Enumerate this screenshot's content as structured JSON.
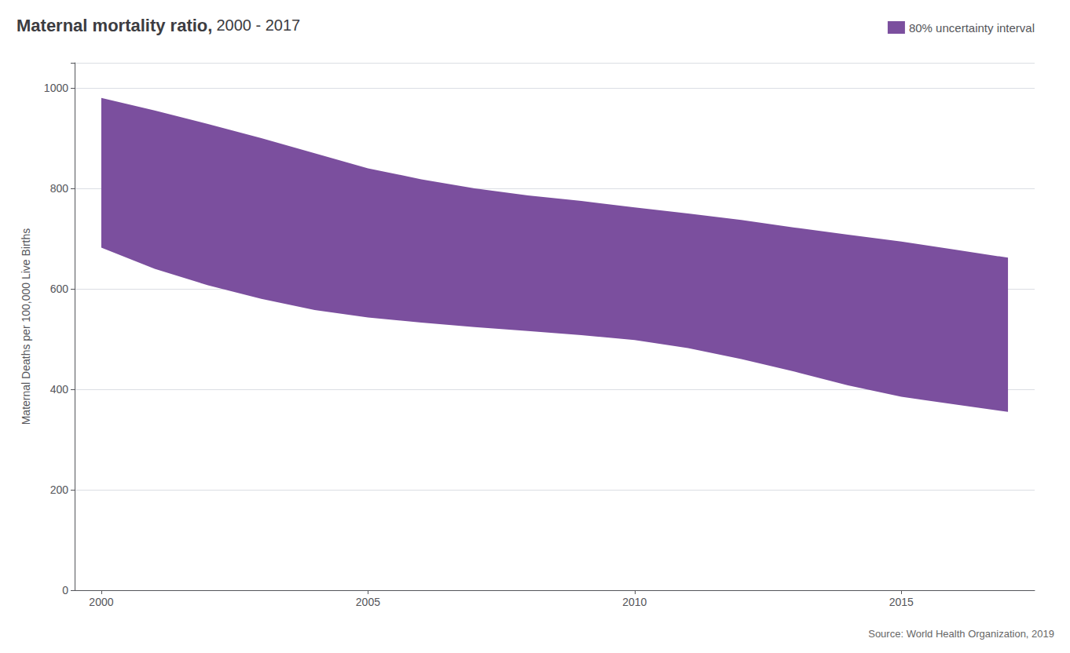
{
  "chart_data": {
    "type": "band",
    "title": "Maternal mortality ratio,",
    "subtitle": "2000 - 2017",
    "ylabel": "Maternal Deaths per 100,000 Live Births",
    "source": "Source: World Health Organization, 2019",
    "x": [
      2000,
      2001,
      2002,
      2003,
      2004,
      2005,
      2006,
      2007,
      2008,
      2009,
      2010,
      2011,
      2012,
      2013,
      2014,
      2015,
      2016,
      2017
    ],
    "series": [
      {
        "name": "80% uncertainty interval",
        "color": "#7b4f9e",
        "upper": [
          980,
          955,
          928,
          900,
          870,
          840,
          818,
          800,
          786,
          775,
          762,
          750,
          737,
          722,
          708,
          694,
          678,
          662
        ],
        "lower": [
          682,
          640,
          607,
          580,
          558,
          543,
          533,
          524,
          516,
          508,
          498,
          482,
          460,
          435,
          408,
          385,
          370,
          355
        ]
      }
    ],
    "xlim": [
      1999.5,
      2017.5
    ],
    "xticks": [
      2000,
      2005,
      2010,
      2015
    ],
    "ylim": [
      0,
      1050
    ],
    "yticks": [
      0,
      200,
      400,
      600,
      800,
      1000
    ],
    "grid": "y",
    "legend": "upper right"
  }
}
